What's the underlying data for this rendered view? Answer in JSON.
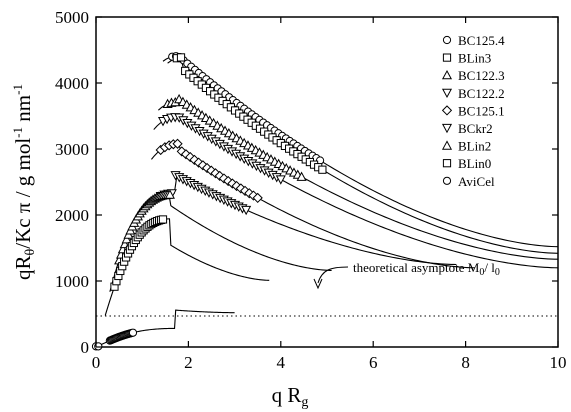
{
  "chart_data": {
    "type": "scatter",
    "xlim": [
      0,
      10
    ],
    "ylim": [
      0,
      5000
    ],
    "x_ticks": [
      0,
      2,
      4,
      6,
      8,
      10
    ],
    "y_ticks": [
      0,
      1000,
      2000,
      3000,
      4000,
      5000
    ],
    "x_tick_labels": [
      "0",
      "2",
      "4",
      "6",
      "8",
      "10"
    ],
    "y_tick_labels": [
      "0",
      "1000",
      "2000",
      "3000",
      "4000",
      "5000"
    ],
    "xlabel": {
      "main": "q R",
      "sub": "g"
    },
    "ylabel": {
      "pre": "qR",
      "sub": "θ",
      "mid": "/Kc π  /  g mol",
      "sup1": "-1",
      "post": " nm",
      "sup2": "-1"
    },
    "grid": false,
    "legend_position": "top-right",
    "annotation": {
      "text_pre": "theoretical asymptote  M",
      "sub1": "0",
      "text_mid": "/ l",
      "sub2": "0",
      "asymptote_y": 470
    },
    "series": [
      {
        "name": "BC125.4",
        "marker": "circle",
        "range": [
          1.65,
          4.85
        ],
        "n": 40,
        "peak_x": 1.75,
        "peak_y": 4430,
        "curve_end_x": 10.0,
        "curve_end_y": 1520
      },
      {
        "name": "BLin3",
        "marker": "square",
        "range": [
          1.75,
          4.9
        ],
        "n": 36,
        "peak_x": 1.9,
        "peak_y": 4200,
        "curve_end_x": 10.0,
        "curve_end_y": 1420
      },
      {
        "name": "BC122.3",
        "marker": "triangle-up",
        "range": [
          1.55,
          4.45
        ],
        "n": 36,
        "peak_x": 1.75,
        "peak_y": 3780,
        "curve_end_x": 10.0,
        "curve_end_y": 1330
      },
      {
        "name": "BC122.2",
        "marker": "triangle-down",
        "range": [
          1.45,
          4.0
        ],
        "n": 30,
        "peak_x": 1.75,
        "peak_y": 3500,
        "curve_end_x": 10.0,
        "curve_end_y": 1200
      },
      {
        "name": "BC125.1",
        "marker": "diamond",
        "range": [
          1.4,
          3.5
        ],
        "n": 24,
        "peak_x": 1.8,
        "peak_y": 2990,
        "curve_end_x": 8.2,
        "curve_end_y": 1200
      },
      {
        "name": "BCkr2",
        "marker": "triangle-down",
        "range": [
          1.4,
          3.25
        ],
        "n": 24,
        "peak_x": 1.7,
        "peak_y": 2610,
        "curve_end_x": 7.8,
        "curve_end_y": 1250
      },
      {
        "name": "BLin2",
        "marker": "triangle-up",
        "range": [
          0.5,
          1.6
        ],
        "n": 28,
        "peak_x": 1.6,
        "peak_y": 2150,
        "curve_end_x": 5.1,
        "curve_end_y": 1160
      },
      {
        "name": "BLin0",
        "marker": "square",
        "range": [
          0.4,
          1.45
        ],
        "n": 26,
        "peak_x": 1.6,
        "peak_y": 1550,
        "curve_end_x": 3.75,
        "curve_end_y": 1010
      },
      {
        "name": "AviCel",
        "marker": "circle",
        "range": [
          0.3,
          0.8
        ],
        "n": 22,
        "peak_x": 1.7,
        "peak_y": 560,
        "curve_end_x": 3.0,
        "curve_end_y": 520
      }
    ]
  }
}
